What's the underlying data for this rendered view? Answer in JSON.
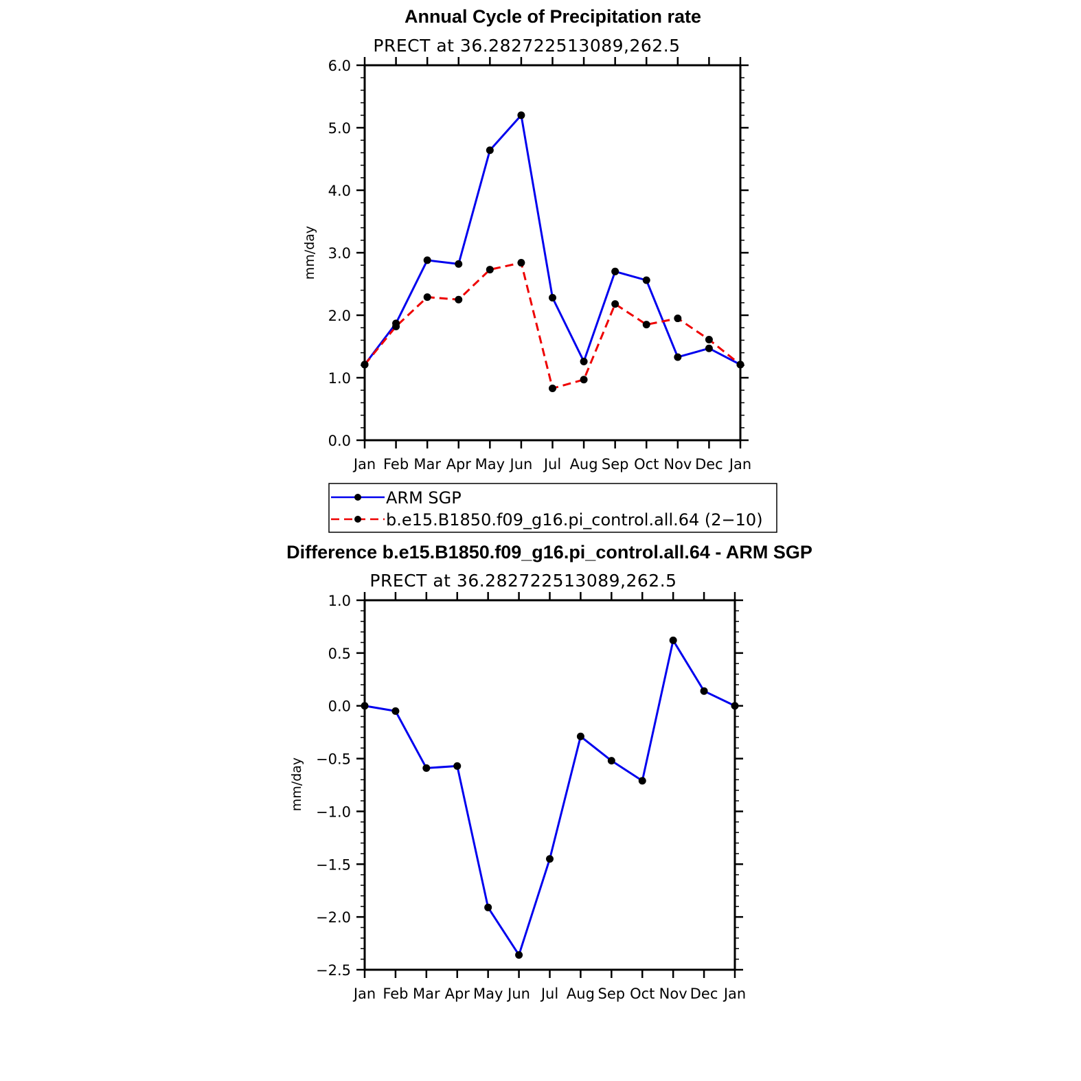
{
  "chart_data": [
    {
      "type": "line",
      "title": "Annual Cycle of Precipitation rate",
      "subtitle": "PRECT at 36.282722513089,262.5",
      "xlabel": "",
      "ylabel": "mm/day",
      "categories": [
        "Jan",
        "Feb",
        "Mar",
        "Apr",
        "May",
        "Jun",
        "Jul",
        "Aug",
        "Sep",
        "Oct",
        "Nov",
        "Dec",
        "Jan"
      ],
      "ylim": [
        0,
        6
      ],
      "yticks": [
        "0.0",
        "1.0",
        "2.0",
        "3.0",
        "4.0",
        "5.0",
        "6.0"
      ],
      "series": [
        {
          "name": "ARM SGP",
          "color": "#0000ee",
          "dash": "solid",
          "values": [
            1.21,
            1.87,
            2.88,
            2.82,
            4.64,
            5.2,
            2.28,
            1.26,
            2.7,
            2.56,
            1.33,
            1.47,
            1.21
          ]
        },
        {
          "name": "b.e15.B1850.f09_g16.pi_control.all.64 (2−10)",
          "color": "#ee0000",
          "dash": "dashed",
          "values": [
            1.21,
            1.82,
            2.29,
            2.25,
            2.73,
            2.84,
            0.83,
            0.97,
            2.18,
            1.85,
            1.95,
            1.61,
            1.21
          ]
        }
      ]
    },
    {
      "type": "line",
      "title": "Difference b.e15.B1850.f09_g16.pi_control.all.64 - ARM SGP",
      "subtitle": "PRECT at 36.282722513089,262.5",
      "xlabel": "",
      "ylabel": "mm/day",
      "categories": [
        "Jan",
        "Feb",
        "Mar",
        "Apr",
        "May",
        "Jun",
        "Jul",
        "Aug",
        "Sep",
        "Oct",
        "Nov",
        "Dec",
        "Jan"
      ],
      "ylim": [
        -2.5,
        1.0
      ],
      "yticks": [
        "−2.5",
        "−2.0",
        "−1.5",
        "−1.0",
        "−0.5",
        "0.0",
        "0.5",
        "1.0"
      ],
      "series": [
        {
          "name": "Difference",
          "color": "#0000ee",
          "dash": "solid",
          "values": [
            0.0,
            -0.05,
            -0.59,
            -0.57,
            -1.91,
            -2.36,
            -1.45,
            -0.29,
            -0.52,
            -0.71,
            0.62,
            0.14,
            0.0
          ]
        }
      ]
    }
  ],
  "legend": {
    "items": [
      {
        "label": "ARM SGP"
      },
      {
        "label": "b.e15.B1850.f09_g16.pi_control.all.64 (2−10)"
      }
    ]
  }
}
